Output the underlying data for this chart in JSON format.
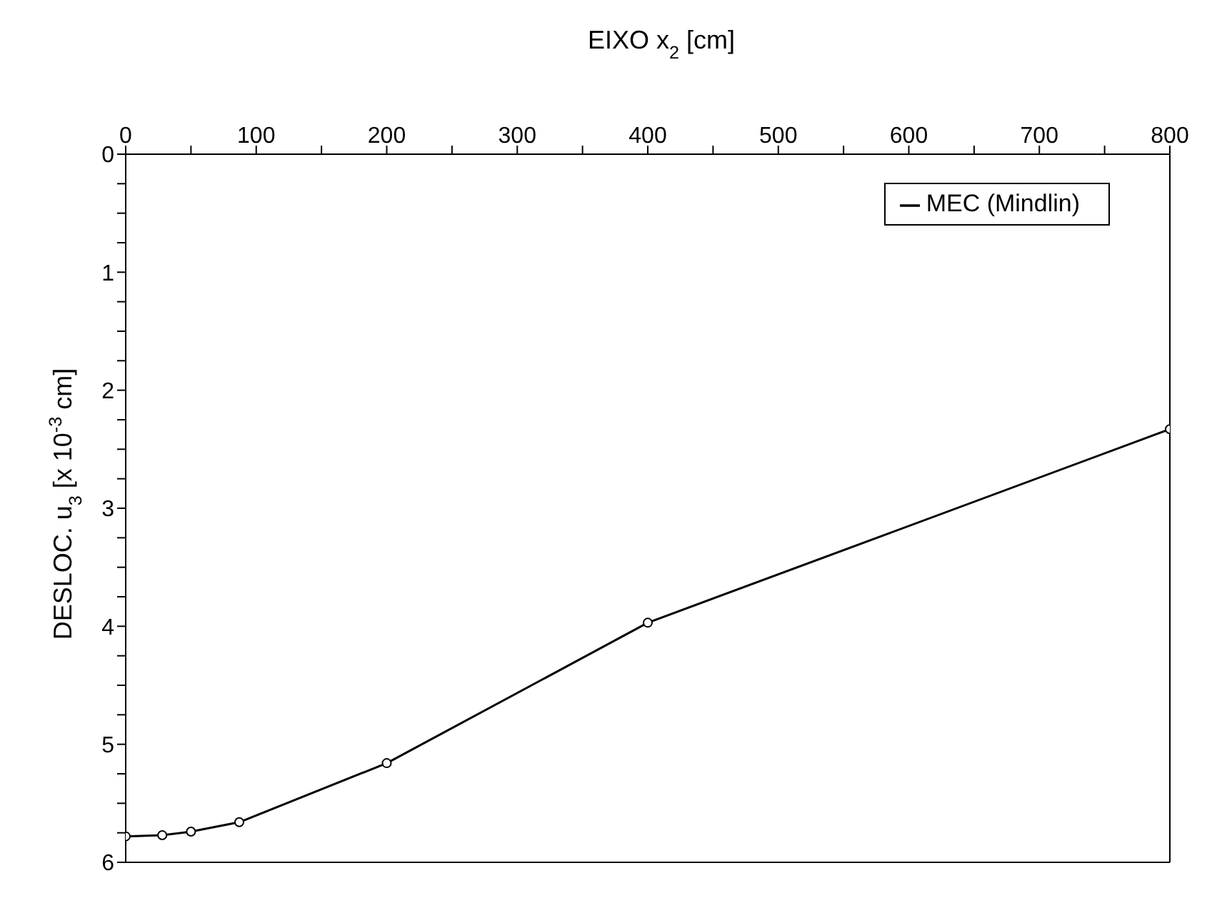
{
  "chart_data": {
    "type": "line",
    "xlabel": "EIXO x$_{2}$ [cm]",
    "ylabel": "DESLOC. u$_{3}$ [x 10$^{-3}$ cm]",
    "x": [
      0,
      28,
      50,
      87,
      200,
      400,
      800
    ],
    "series": [
      {
        "name": "MEC (Mindlin)",
        "color": "#000000",
        "values": [
          5.78,
          5.77,
          5.74,
          5.66,
          5.16,
          3.97,
          2.33
        ]
      }
    ],
    "xlim": [
      0,
      800
    ],
    "xticks": [
      0,
      {
        "value": 50,
        "label": null
      },
      100,
      {
        "value": 150,
        "label": null
      },
      200,
      {
        "value": 250,
        "label": null
      },
      300,
      {
        "value": 350,
        "label": null
      },
      400,
      {
        "value": 450,
        "label": null
      },
      500,
      {
        "value": 550,
        "label": null
      },
      600,
      {
        "value": 650,
        "label": null
      },
      700,
      {
        "value": 750,
        "label": null
      },
      800
    ],
    "ylim": [
      6,
      0
    ],
    "yticks": [
      0,
      {
        "value": 0.25,
        "label": null
      },
      {
        "value": 0.5,
        "label": null
      },
      {
        "value": 0.75,
        "label": null
      },
      1,
      {
        "value": 1.25,
        "label": null
      },
      {
        "value": 1.5,
        "label": null
      },
      {
        "value": 1.75,
        "label": null
      },
      2,
      {
        "value": 2.25,
        "label": null
      },
      {
        "value": 2.5,
        "label": null
      },
      {
        "value": 2.75,
        "label": null
      },
      3,
      {
        "value": 3.25,
        "label": null
      },
      {
        "value": 3.5,
        "label": null
      },
      {
        "value": 3.75,
        "label": null
      },
      4,
      {
        "value": 4.25,
        "label": null
      },
      {
        "value": 4.5,
        "label": null
      },
      {
        "value": 4.75,
        "label": null
      },
      5,
      {
        "value": 5.25,
        "label": null
      },
      {
        "value": 5.5,
        "label": null
      },
      {
        "value": 5.75,
        "label": null
      },
      6
    ],
    "marker": "circle",
    "line_style": "solid",
    "legend": "top right",
    "grid": false
  }
}
